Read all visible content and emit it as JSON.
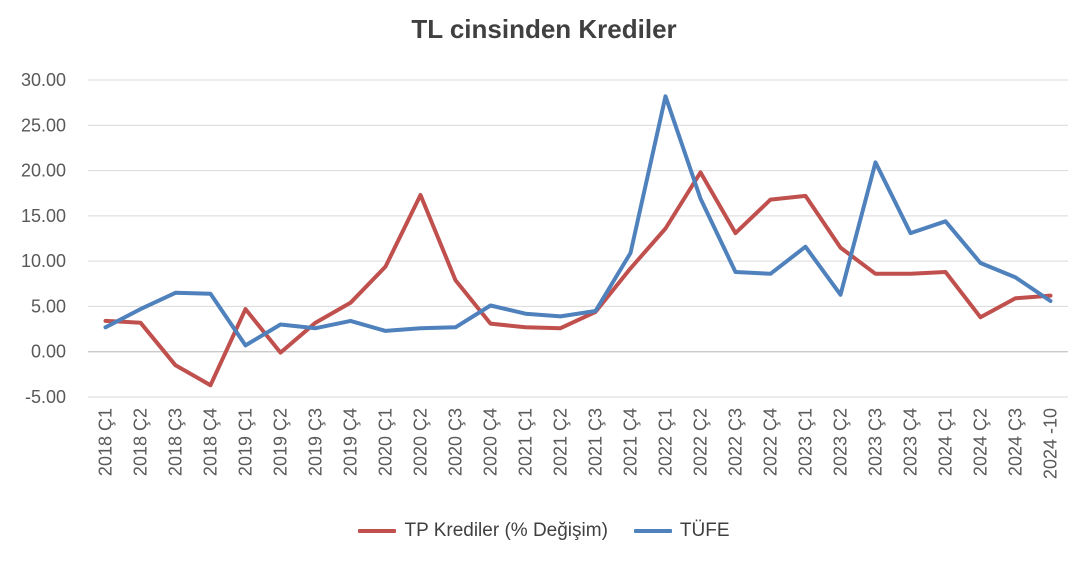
{
  "chart_data": {
    "type": "line",
    "title": "TL cinsinden Krediler",
    "xlabel": "",
    "ylabel": "",
    "ylim": [
      -5,
      30
    ],
    "yticks": [
      "-5.00",
      "0.00",
      "5.00",
      "10.00",
      "15.00",
      "20.00",
      "25.00",
      "30.00"
    ],
    "grid": true,
    "legend": "bottom",
    "categories": [
      "2018 Ç1",
      "2018 Ç2",
      "2018 Ç3",
      "2018 Ç4",
      "2019 Ç1",
      "2019 Ç2",
      "2019 Ç3",
      "2019 Ç4",
      "2020 Ç1",
      "2020 Ç2",
      "2020 Ç3",
      "2020 Ç4",
      "2021 Ç1",
      "2021 Ç2",
      "2021 Ç3",
      "2021 Ç4",
      "2022 Ç1",
      "2022 Ç2",
      "2022 Ç3",
      "2022 Ç4",
      "2023 Ç1",
      "2023 Ç2",
      "2023 Ç3",
      "2023 Ç4",
      "2024 Ç1",
      "2024 Ç2",
      "2024 Ç3",
      "2024 -10"
    ],
    "series": [
      {
        "name": "TP Krediler (% Değişim)",
        "color": "#c0504d",
        "values": [
          3.4,
          3.2,
          -1.5,
          -3.7,
          4.7,
          -0.1,
          3.2,
          5.4,
          9.4,
          17.3,
          7.9,
          3.1,
          2.7,
          2.6,
          4.4,
          9.2,
          13.6,
          19.8,
          13.1,
          16.8,
          17.2,
          11.5,
          8.6,
          8.6,
          8.8,
          3.8,
          5.9,
          6.2
        ]
      },
      {
        "name": "TÜFE",
        "color": "#4f81bd",
        "values": [
          2.7,
          4.7,
          6.5,
          6.4,
          0.7,
          3.0,
          2.6,
          3.4,
          2.3,
          2.6,
          2.7,
          5.1,
          4.2,
          3.9,
          4.5,
          10.9,
          28.2,
          16.9,
          8.8,
          8.6,
          11.6,
          6.3,
          20.9,
          13.1,
          14.4,
          9.8,
          8.2,
          5.6
        ]
      }
    ]
  }
}
